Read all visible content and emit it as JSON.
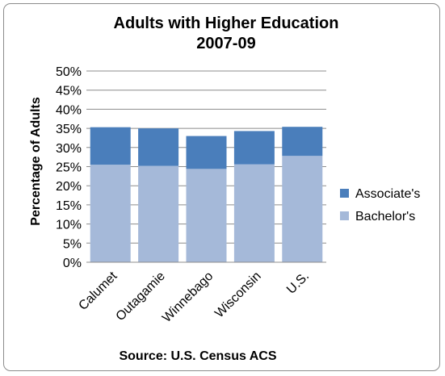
{
  "chart_data": {
    "type": "bar",
    "stacked": true,
    "title_lines": [
      "Adults with Higher Education",
      "2007-09"
    ],
    "ylabel": "Percentage of Adults",
    "xlabel": "Source: U.S. Census ACS",
    "categories": [
      "Calumet",
      "Outagamie",
      "Winnebago",
      "Wisconsin",
      "U.S."
    ],
    "ylim": [
      0,
      50
    ],
    "yticks": [
      "0%",
      "5%",
      "10%",
      "15%",
      "20%",
      "25%",
      "30%",
      "35%",
      "40%",
      "45%",
      "50%"
    ],
    "grid": true,
    "legend_position": "right",
    "series": [
      {
        "name": "Bachelor's",
        "color": "#A5B9D9",
        "values": [
          25.5,
          25.2,
          24.4,
          25.6,
          27.8
        ]
      },
      {
        "name": "Associate's",
        "color": "#4A7EBB",
        "values": [
          9.8,
          9.8,
          8.6,
          8.7,
          7.6
        ]
      }
    ],
    "legend_order": [
      "Associate's",
      "Bachelor's"
    ]
  }
}
